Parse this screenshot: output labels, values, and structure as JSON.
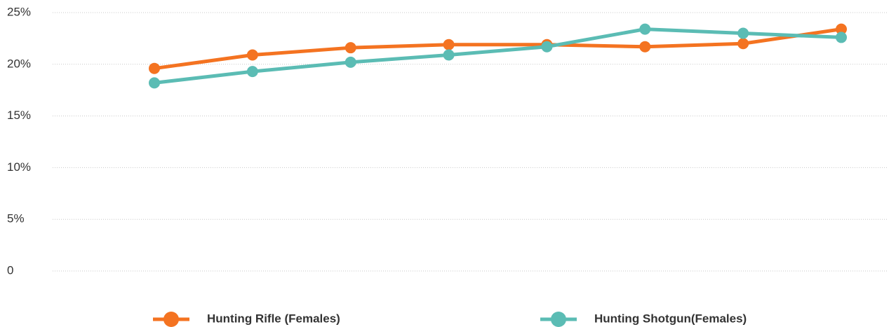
{
  "chart_data": {
    "type": "line",
    "categories": [
      null,
      null,
      null,
      null,
      null,
      null,
      null,
      null
    ],
    "series": [
      {
        "name": "Hunting Rifle (Females)",
        "color": "#f47321",
        "values": [
          19.6,
          20.9,
          21.6,
          21.9,
          21.9,
          21.7,
          22.0,
          23.4
        ]
      },
      {
        "name": "Hunting Shotgun(Females)",
        "color": "#5bbcb4",
        "values": [
          18.2,
          19.3,
          20.2,
          20.9,
          21.7,
          23.4,
          23.0,
          22.6
        ]
      }
    ],
    "ylim": [
      0,
      25
    ],
    "yticks": [
      0,
      {
        "value": 5,
        "label": "5%"
      },
      {
        "value": 10,
        "label": "10%"
      },
      {
        "value": 15,
        "label": "15%"
      },
      {
        "value": 20,
        "label": "20%"
      },
      {
        "value": 25,
        "label": "25%"
      }
    ],
    "grid": true,
    "legend": "bottom"
  }
}
